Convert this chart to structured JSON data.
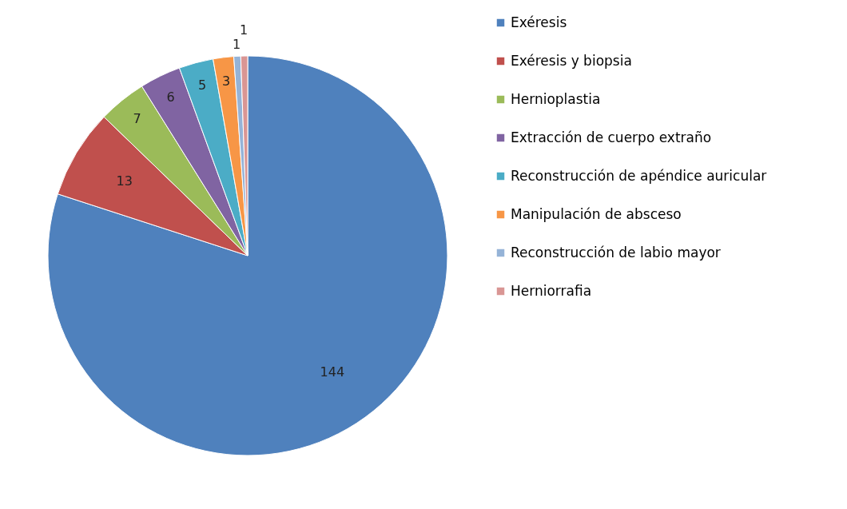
{
  "chart_data": {
    "type": "pie",
    "categories": [
      "Exéresis",
      "Exéresis y biopsia",
      "Hernioplastia",
      "Extracción de cuerpo extraño",
      "Reconstrucción de apéndice auricular",
      "Manipulación  de absceso",
      "Reconstrucción de labio mayor",
      "Herniorrafia"
    ],
    "values": [
      144,
      13,
      7,
      6,
      5,
      3,
      1,
      1
    ],
    "colors": [
      "#4f81bd",
      "#c0504d",
      "#9bbb59",
      "#8064a2",
      "#4bacc6",
      "#f79646",
      "#95b3d7",
      "#d99694"
    ],
    "data_labels": true,
    "legend": "right"
  }
}
